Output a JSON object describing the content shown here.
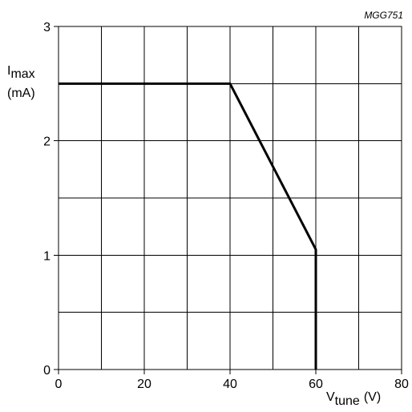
{
  "chart_data": {
    "type": "line",
    "figure_code": "MGG751",
    "ylabel": {
      "main": "I",
      "sub": "max",
      "unit": "(mA)"
    },
    "xlabel": {
      "main": "V",
      "sub": "tune",
      "unit": "(V)"
    },
    "xlim": [
      0,
      80
    ],
    "ylim": [
      0,
      3
    ],
    "x_major_ticks": [
      0,
      20,
      40,
      60,
      80
    ],
    "x_tick_labels": [
      "0",
      "20",
      "40",
      "60",
      "80"
    ],
    "x_minor_grid_step": 10,
    "y_major_ticks": [
      0,
      1,
      2,
      3
    ],
    "y_tick_labels": [
      "0",
      "1",
      "2",
      "3"
    ],
    "y_minor_grid_step": 0.5,
    "grid": true,
    "series": [
      {
        "x": [
          0,
          40,
          60,
          60
        ],
        "y": [
          2.5,
          2.5,
          1.05,
          0
        ]
      }
    ],
    "colors": {
      "line": "#000000",
      "grid": "#000000",
      "background": "#ffffff"
    }
  }
}
